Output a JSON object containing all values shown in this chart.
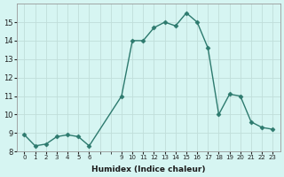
{
  "x_indices": [
    0,
    1,
    2,
    3,
    4,
    5,
    6,
    9,
    10,
    11,
    12,
    13,
    14,
    15,
    16,
    17,
    18,
    19,
    20,
    21,
    22,
    23
  ],
  "y": [
    8.9,
    8.3,
    8.4,
    8.8,
    8.9,
    8.8,
    8.3,
    11.0,
    14.0,
    14.0,
    14.7,
    15.0,
    14.8,
    15.5,
    15.0,
    13.6,
    10.0,
    11.1,
    11.0,
    9.6,
    9.3,
    9.2
  ],
  "line_color": "#2d7a6e",
  "marker": "D",
  "marker_size": 2.5,
  "background_color": "#d6f5f2",
  "grid_color": "#c0deda",
  "xlabel": "Humidex (Indice chaleur)",
  "xlim": [
    -0.7,
    23.7
  ],
  "ylim": [
    8,
    16
  ],
  "yticks": [
    8,
    9,
    10,
    11,
    12,
    13,
    14,
    15
  ],
  "xtick_positions": [
    0,
    1,
    2,
    3,
    4,
    5,
    6,
    9,
    10,
    11,
    12,
    13,
    14,
    15,
    16,
    17,
    18,
    19,
    20,
    21,
    22,
    23
  ],
  "xtick_labels": [
    "0",
    "1",
    "2",
    "3",
    "4",
    "5",
    "6",
    "9",
    "10",
    "11",
    "12",
    "13",
    "14",
    "15",
    "16",
    "17",
    "18",
    "19",
    "20",
    "21",
    "22",
    "23"
  ]
}
